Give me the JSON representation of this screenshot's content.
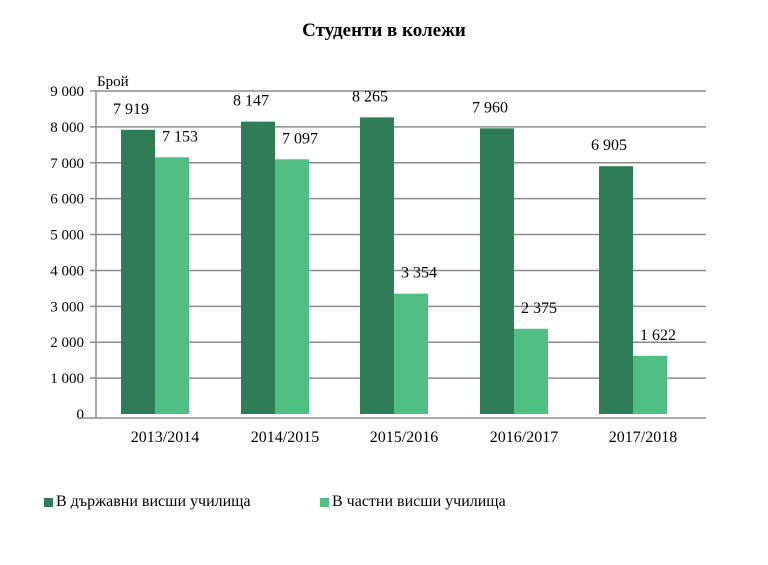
{
  "chart_data": {
    "type": "bar",
    "title": "Студенти в колежи",
    "ylabel": "Брой",
    "xlabel": "",
    "ylim": [
      0,
      9000
    ],
    "yticks": [
      0,
      1000,
      2000,
      3000,
      4000,
      5000,
      6000,
      7000,
      8000,
      9000
    ],
    "ytick_labels": [
      "0",
      "1 000",
      "2 000",
      "3 000",
      "4 000",
      "5 000",
      "6 000",
      "7 000",
      "8 000",
      "9 000"
    ],
    "grid": true,
    "legend_position": "bottom-left",
    "categories": [
      "2013/2014",
      "2014/2015",
      "2015/2016",
      "2016/2017",
      "2017/2018"
    ],
    "series": [
      {
        "name": "В държавни висши училища",
        "color": "#2e7d57",
        "values": [
          7919,
          8147,
          8265,
          7960,
          6905
        ],
        "labels": [
          "7 919",
          "8 147",
          "8 265",
          "7 960",
          "6 905"
        ]
      },
      {
        "name": "В частни висши училища",
        "color": "#4fbf84",
        "values": [
          7153,
          7097,
          3354,
          2375,
          1622
        ],
        "labels": [
          "7 153",
          "7 097",
          "3 354",
          "2 375",
          "1 622"
        ]
      }
    ]
  }
}
